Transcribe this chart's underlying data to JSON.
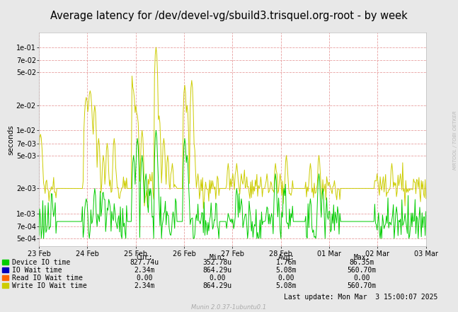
{
  "title": "Average latency for /dev/devel-vg/sbuild3.trisquel.org-root - by week",
  "ylabel": "seconds",
  "background_color": "#e8e8e8",
  "plot_bg_color": "#ffffff",
  "grid_color": "#e8a0a0",
  "title_fontsize": 10.5,
  "axis_fontsize": 7,
  "legend_labels": [
    "Device IO time",
    "IO Wait time",
    "Read IO Wait time",
    "Write IO Wait time"
  ],
  "legend_colors": [
    "#00cc00",
    "#0000bb",
    "#ff6600",
    "#cccc00"
  ],
  "xtick_labels": [
    "23 Feb",
    "24 Feb",
    "25 Feb",
    "26 Feb",
    "27 Feb",
    "28 Feb",
    "01 Mar",
    "02 Mar",
    "03 Mar"
  ],
  "ytick_labels": [
    "5e-04",
    "7e-04",
    "1e-03",
    "2e-03",
    "5e-03",
    "7e-03",
    "1e-02",
    "2e-02",
    "5e-02",
    "7e-02",
    "1e-01"
  ],
  "ytick_values": [
    0.0005,
    0.0007,
    0.001,
    0.002,
    0.005,
    0.007,
    0.01,
    0.02,
    0.05,
    0.07,
    0.1
  ],
  "ymin": 0.0004,
  "ymax": 0.15,
  "footer_text": "Munin 2.0.37-1ubuntu0.1",
  "side_text": "MRTOOL / TOBI OETKER",
  "stats": {
    "cur": [
      "827.74u",
      "2.34m",
      "0.00",
      "2.34m"
    ],
    "min": [
      "352.78u",
      "864.29u",
      "0.00",
      "864.29u"
    ],
    "avg": [
      "1.76m",
      "5.08m",
      "0.00",
      "5.08m"
    ],
    "max": [
      "86.35m",
      "560.70m",
      "0.00",
      "560.70m"
    ]
  },
  "last_update": "Last update: Mon Mar  3 15:00:07 2025"
}
